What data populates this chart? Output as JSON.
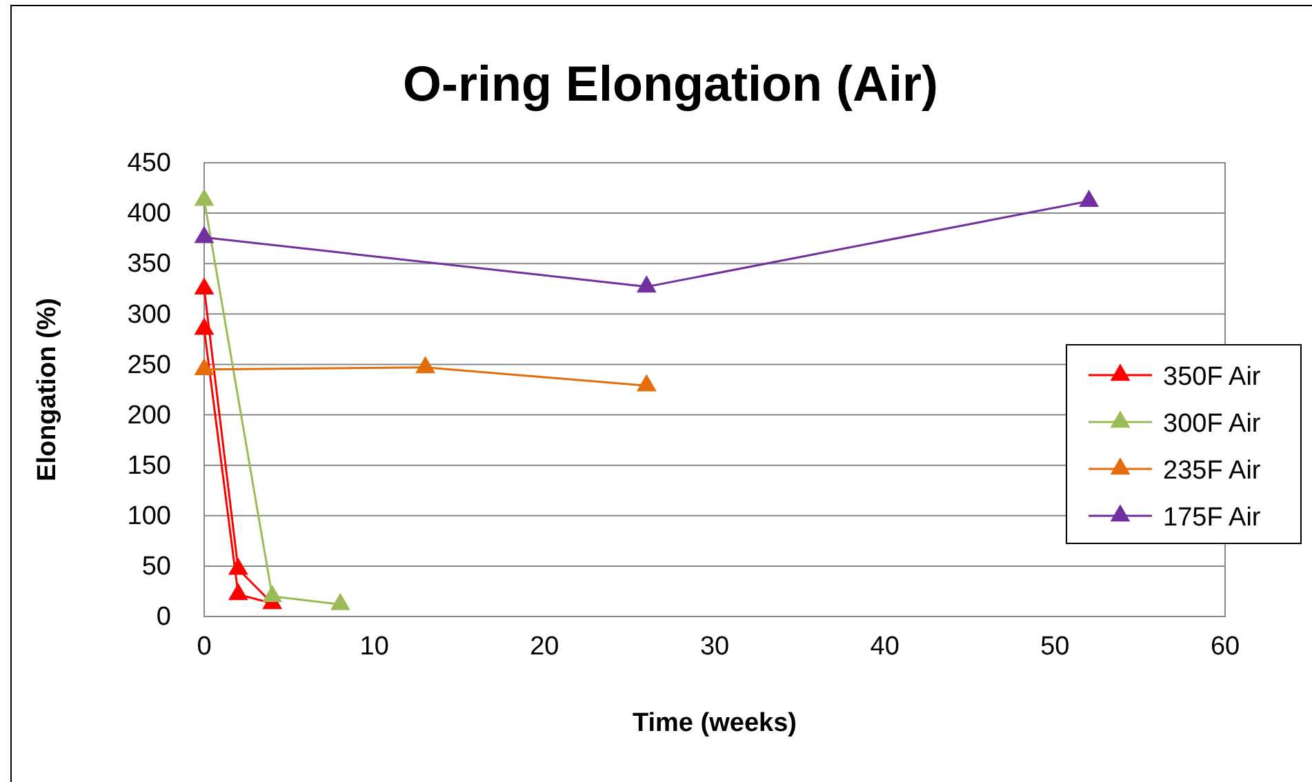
{
  "chart_data": {
    "type": "line",
    "title": "O-ring Elongation (Air)",
    "xlabel": "Time (weeks)",
    "ylabel": "Elongation (%)",
    "xlim": [
      0,
      60
    ],
    "xticks": [
      0,
      10,
      20,
      30,
      40,
      50,
      60
    ],
    "ylim": [
      0,
      450
    ],
    "yticks": [
      0,
      50,
      100,
      150,
      200,
      250,
      300,
      350,
      400,
      450
    ],
    "grid": "y",
    "legend": "right",
    "marker": "triangle",
    "line_style": "solid",
    "series": [
      {
        "name": "350F Air",
        "color": "#ff0000",
        "x": [
          0,
          2,
          4,
          2,
          0
        ],
        "values": [
          325,
          47,
          13,
          22,
          285
        ]
      },
      {
        "name": "300F Air",
        "color": "#9bbb59",
        "x": [
          0,
          4,
          8
        ],
        "values": [
          413,
          20,
          12
        ]
      },
      {
        "name": "235F Air",
        "color": "#e46c0a",
        "x": [
          0,
          13,
          26
        ],
        "values": [
          245,
          247,
          229
        ]
      },
      {
        "name": "175F Air",
        "color": "#7030a0",
        "x": [
          0,
          26,
          52
        ],
        "values": [
          376,
          327,
          412
        ]
      }
    ]
  }
}
